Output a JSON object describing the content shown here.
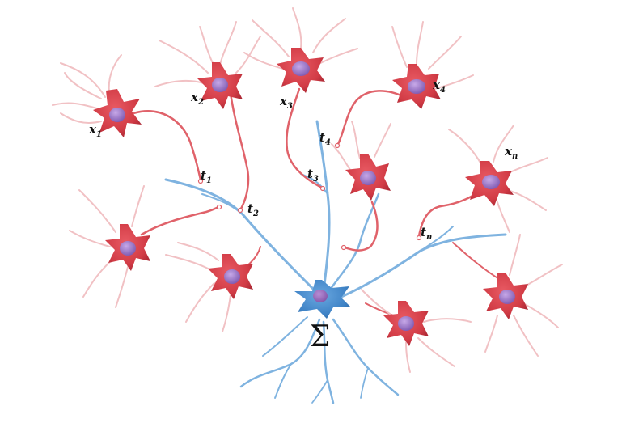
{
  "labels": {
    "inputs": [
      "x",
      "x",
      "x",
      "x",
      "x"
    ],
    "input_subscripts": [
      "1",
      "2",
      "3",
      "4",
      "n"
    ],
    "weights": [
      "t",
      "t",
      "t",
      "t",
      "t"
    ],
    "weight_subscripts": [
      "1",
      "2",
      "3",
      "4",
      "n"
    ],
    "sum_symbol": "Σ"
  },
  "colors": {
    "neuron_body": "#d9404a",
    "neuron_dark": "#b52b36",
    "neuron_dendrite": "#f1c1c4",
    "nucleus": "#8e6bbf",
    "target_body": "#4a8ed0",
    "target_dendrite": "#7fb3e0",
    "axon": "#e0626a"
  }
}
